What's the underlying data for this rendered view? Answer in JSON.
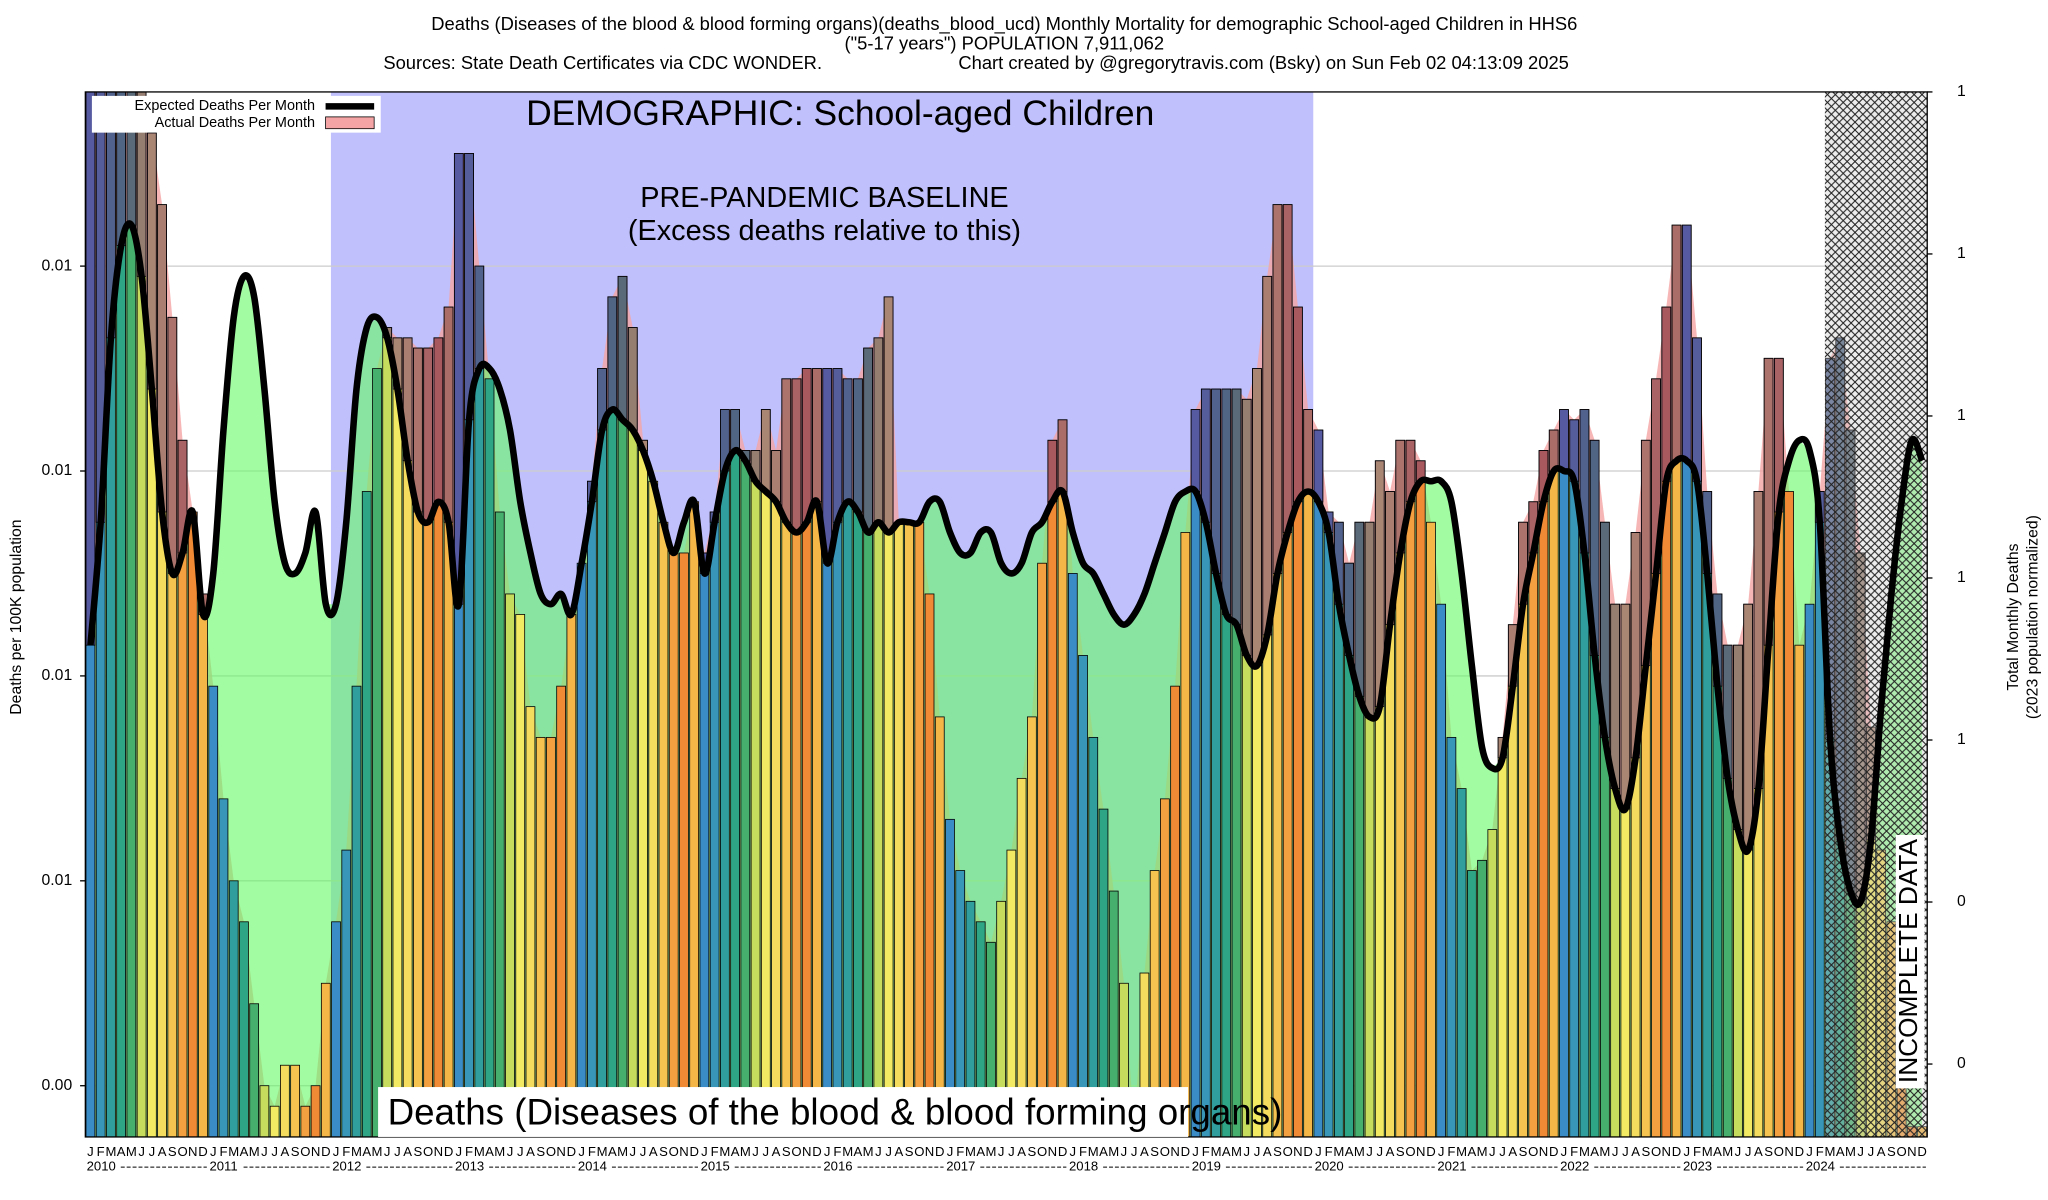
{
  "chart_data": {
    "type": "bar",
    "title": "Deaths (Diseases of the blood & blood forming organs)(deaths_blood_ucd) Monthly Mortality for demographic School-aged Children in HHS6",
    "subtitle": "(\"5-17 years\")  POPULATION 7,911,062",
    "source": "Sources: State Death Certificates via CDC WONDER.",
    "credit": "Chart created by @gregorytravis.com (Bsky) on Sun Feb 02 04:13:09 2025",
    "annotations": {
      "demographic": "DEMOGRAPHIC: School-aged Children",
      "baseline": "PRE-PANDEMIC BASELINE",
      "baseline_note": "(Excess deaths relative to this)",
      "cause": "Deaths (Diseases of the blood & blood forming organs)",
      "incomplete": "INCOMPLETE DATA"
    },
    "y_label": "Deaths per 100K population",
    "y2_label": "Total Monthly Deaths",
    "y2_label_note": "(2023 population normalized)",
    "years": [
      "2010",
      "2011",
      "2012",
      "2013",
      "2014",
      "2015",
      "2016",
      "2017",
      "2018",
      "2019",
      "2020",
      "2021",
      "2022",
      "2023",
      "2024"
    ],
    "categories": [
      "J",
      "F",
      "M",
      "A",
      "M",
      "J",
      "J",
      "A",
      "S",
      "O",
      "N",
      "D",
      "J",
      "F",
      "M",
      "A",
      "M",
      "J",
      "J",
      "A",
      "S",
      "O",
      "N",
      "D",
      "J",
      "F",
      "M",
      "A",
      "M",
      "J",
      "J",
      "A",
      "S",
      "O",
      "N",
      "D",
      "J",
      "F",
      "M",
      "A",
      "M",
      "J",
      "J",
      "A",
      "S",
      "O",
      "N",
      "D",
      "J",
      "F",
      "M",
      "A",
      "M",
      "J",
      "J",
      "A",
      "S",
      "O",
      "N",
      "D",
      "J",
      "F",
      "M",
      "A",
      "M",
      "J",
      "J",
      "A",
      "S",
      "O",
      "N",
      "D",
      "J",
      "F",
      "M",
      "A",
      "M",
      "J",
      "J",
      "A",
      "S",
      "O",
      "N",
      "D",
      "J",
      "F",
      "M",
      "A",
      "M",
      "J",
      "J",
      "A",
      "S",
      "O",
      "N",
      "D",
      "J",
      "F",
      "M",
      "A",
      "M",
      "J",
      "J",
      "A",
      "S",
      "O",
      "N",
      "D",
      "J",
      "F",
      "M",
      "A",
      "M",
      "J",
      "J",
      "A",
      "S",
      "O",
      "N",
      "D",
      "J",
      "F",
      "M",
      "A",
      "M",
      "J",
      "J",
      "A",
      "S",
      "O",
      "N",
      "D",
      "J",
      "F",
      "M",
      "A",
      "M",
      "J",
      "J",
      "A",
      "S",
      "O",
      "N",
      "D",
      "J",
      "F",
      "M",
      "A",
      "M",
      "J",
      "J",
      "A",
      "S",
      "O",
      "N",
      "D",
      "J",
      "F",
      "M",
      "A",
      "M",
      "J",
      "J",
      "A",
      "S",
      "O",
      "N",
      "D",
      "J",
      "F",
      "M",
      "A",
      "M",
      "J",
      "J",
      "A",
      "S",
      "O",
      "N",
      "D"
    ],
    "series": [
      {
        "name": "Expected Deaths Per Month",
        "color": "#000000",
        "values": [
          0.0083,
          0.0095,
          0.0113,
          0.0122,
          0.0124,
          0.0119,
          0.0108,
          0.0096,
          0.009,
          0.0092,
          0.0096,
          0.0086,
          0.009,
          0.0104,
          0.0115,
          0.0119,
          0.0117,
          0.0108,
          0.0097,
          0.0091,
          0.009,
          0.0092,
          0.0096,
          0.0087,
          0.0087,
          0.0095,
          0.0108,
          0.0114,
          0.0115,
          0.0113,
          0.0108,
          0.0101,
          0.0096,
          0.0095,
          0.0097,
          0.0095,
          0.0087,
          0.0105,
          0.011,
          0.011,
          0.0108,
          0.0104,
          0.0097,
          0.0092,
          0.0088,
          0.0087,
          0.0088,
          0.0086,
          0.0091,
          0.0097,
          0.0104,
          0.0106,
          0.0105,
          0.0104,
          0.0102,
          0.0099,
          0.0095,
          0.0092,
          0.0095,
          0.0097,
          0.009,
          0.0095,
          0.01,
          0.0102,
          0.0101,
          0.0099,
          0.0098,
          0.0097,
          0.0095,
          0.0094,
          0.0095,
          0.0097,
          0.0091,
          0.0095,
          0.0097,
          0.0096,
          0.0094,
          0.0095,
          0.0094,
          0.0095,
          0.0095,
          0.0095,
          0.0097,
          0.0097,
          0.0094,
          0.0092,
          0.0092,
          0.0094,
          0.0094,
          0.0091,
          0.009,
          0.0091,
          0.0094,
          0.0095,
          0.0097,
          0.0098,
          0.0094,
          0.0091,
          0.009,
          0.0088,
          0.0086,
          0.0085,
          0.0086,
          0.0088,
          0.0091,
          0.0094,
          0.0097,
          0.0098,
          0.0098,
          0.0095,
          0.009,
          0.0086,
          0.0085,
          0.0082,
          0.0081,
          0.0084,
          0.009,
          0.0094,
          0.0097,
          0.0098,
          0.0097,
          0.0094,
          0.0087,
          0.0082,
          0.0078,
          0.0076,
          0.0077,
          0.0085,
          0.0092,
          0.0097,
          0.0099,
          0.0099,
          0.0099,
          0.0097,
          0.009,
          0.0081,
          0.0073,
          0.0071,
          0.0072,
          0.0079,
          0.0087,
          0.0092,
          0.0097,
          0.01,
          0.01,
          0.0099,
          0.0092,
          0.0082,
          0.0074,
          0.0069,
          0.0067,
          0.0072,
          0.0081,
          0.009,
          0.0099,
          0.0101,
          0.0101,
          0.0099,
          0.009,
          0.0079,
          0.007,
          0.0065,
          0.0063,
          0.0069,
          0.0083,
          0.0096,
          0.0101,
          0.0103,
          0.0102,
          0.0095,
          0.0074,
          0.0064,
          0.0059,
          0.0058,
          0.0064,
          0.0077,
          0.0088,
          0.0097,
          0.0103,
          0.0101
        ]
      },
      {
        "name": "Actual Deaths Per Month",
        "color": "#f4a4a4",
        "values": [
          0.0137,
          0.0137,
          0.0137,
          0.0137,
          0.0137,
          0.0137,
          0.0133,
          0.0126,
          0.0115,
          0.0103,
          0.0096,
          0.0088,
          0.0079,
          0.0068,
          0.006,
          0.0056,
          0.0048,
          0.004,
          0.0038,
          0.0042,
          0.0042,
          0.0038,
          0.004,
          0.005,
          0.0056,
          0.0063,
          0.0079,
          0.0098,
          0.011,
          0.0114,
          0.0113,
          0.0113,
          0.0112,
          0.0112,
          0.0113,
          0.0116,
          0.0131,
          0.0131,
          0.012,
          0.0109,
          0.0096,
          0.0088,
          0.0086,
          0.0077,
          0.0074,
          0.0074,
          0.0079,
          0.0086,
          0.0091,
          0.0099,
          0.011,
          0.0117,
          0.0119,
          0.0114,
          0.0103,
          0.0099,
          0.0095,
          0.0092,
          0.0092,
          0.0097,
          0.0092,
          0.0096,
          0.0106,
          0.0106,
          0.0102,
          0.0102,
          0.0106,
          0.0102,
          0.0109,
          0.0109,
          0.011,
          0.011,
          0.011,
          0.011,
          0.0109,
          0.0109,
          0.0112,
          0.0113,
          0.0117,
          0.0095,
          0.0095,
          0.0095,
          0.0088,
          0.0076,
          0.0066,
          0.0061,
          0.0058,
          0.0056,
          0.0054,
          0.0058,
          0.0063,
          0.007,
          0.0076,
          0.0091,
          0.0103,
          0.0105,
          0.009,
          0.0082,
          0.0074,
          0.0067,
          0.0059,
          0.005,
          0.0036,
          0.0051,
          0.0061,
          0.0068,
          0.0079,
          0.0094,
          0.0106,
          0.0108,
          0.0108,
          0.0108,
          0.0108,
          0.0107,
          0.011,
          0.0119,
          0.0126,
          0.0126,
          0.0116,
          0.0106,
          0.0104,
          0.0096,
          0.0095,
          0.0091,
          0.0095,
          0.0095,
          0.0101,
          0.0098,
          0.0103,
          0.0103,
          0.0101,
          0.0095,
          0.0087,
          0.0074,
          0.0069,
          0.0061,
          0.0062,
          0.0065,
          0.0074,
          0.0085,
          0.0095,
          0.0097,
          0.0102,
          0.0104,
          0.0106,
          0.0105,
          0.0106,
          0.0103,
          0.0095,
          0.0087,
          0.0087,
          0.0094,
          0.0103,
          0.0109,
          0.0116,
          0.0124,
          0.0124,
          0.0113,
          0.0098,
          0.0088,
          0.0083,
          0.0083,
          0.0087,
          0.0098,
          0.0111,
          0.0111,
          0.0098,
          0.0083,
          0.0087,
          0.0098,
          0.0111,
          0.0113,
          0.0104,
          0.0092,
          0.0075,
          0.0063,
          0.0056,
          0.0043,
          0.0036,
          0.0036
        ]
      }
    ],
    "month_colors": [
      "#3a8cc6",
      "#3896b8",
      "#2f9e9c",
      "#2ea585",
      "#46af6e",
      "#c6dc5c",
      "#f2ea62",
      "#f3dc5e",
      "#f5c450",
      "#f2a040",
      "#f08a34",
      "#f5b648"
    ],
    "ylim": [
      0.0035,
      0.0137
    ],
    "yticks": [
      {
        "value": 0.012,
        "label": "0.01"
      },
      0.01,
      {
        "value": 0.008,
        "label": "0.01"
      },
      {
        "value": 0.006,
        "label": "0.01"
      },
      {
        "value": 0.004,
        "label": "0.00"
      }
    ],
    "y2lim": [
      0.11,
      1.4
    ],
    "y2ticks": [
      {
        "value": 1.4,
        "label": "1"
      },
      {
        "value": 1.2,
        "label": "1"
      },
      1,
      {
        "value": 0.8,
        "label": "1"
      },
      {
        "value": 0.6,
        "label": "1"
      },
      {
        "value": 0.4,
        "label": "0"
      },
      {
        "value": 0.2,
        "label": "0"
      }
    ],
    "grid": true,
    "legend": "top-left"
  }
}
